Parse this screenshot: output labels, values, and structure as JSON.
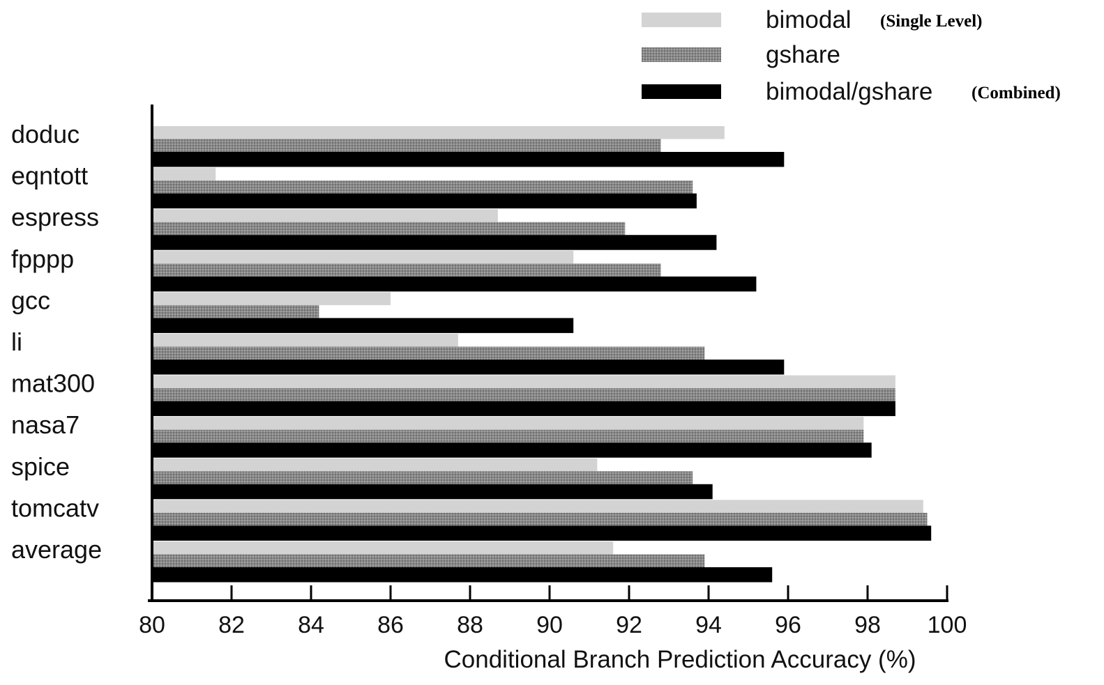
{
  "chart_data": {
    "type": "bar",
    "orientation": "horizontal",
    "categories": [
      "doduc",
      "eqntott",
      "espress",
      "fpppp",
      "gcc",
      "li",
      "mat300",
      "nasa7",
      "spice",
      "tomcatv",
      "average"
    ],
    "series": [
      {
        "name": "bimodal",
        "note": "(Single Level)",
        "color": "#d3d3d3",
        "values": [
          94.4,
          81.6,
          88.7,
          90.6,
          86.0,
          87.7,
          98.7,
          97.9,
          91.2,
          99.4,
          91.6
        ]
      },
      {
        "name": "gshare",
        "note": "",
        "color": "#8a8a8a",
        "values": [
          92.8,
          93.6,
          91.9,
          92.8,
          84.2,
          93.9,
          98.7,
          97.9,
          93.6,
          99.5,
          93.9
        ]
      },
      {
        "name": "bimodal/gshare",
        "note": "(Combined)",
        "color": "#000000",
        "values": [
          95.9,
          93.7,
          94.2,
          95.2,
          90.6,
          95.9,
          98.7,
          98.1,
          94.1,
          99.6,
          95.6
        ]
      }
    ],
    "xlim": [
      80,
      100
    ],
    "xticks": [
      80,
      82,
      84,
      86,
      88,
      90,
      92,
      94,
      96,
      98,
      100
    ],
    "xlabel": "Conditional Branch Prediction Accuracy (%)",
    "ylabel": "",
    "title": "",
    "grid": false,
    "legend_position": "top-right"
  }
}
